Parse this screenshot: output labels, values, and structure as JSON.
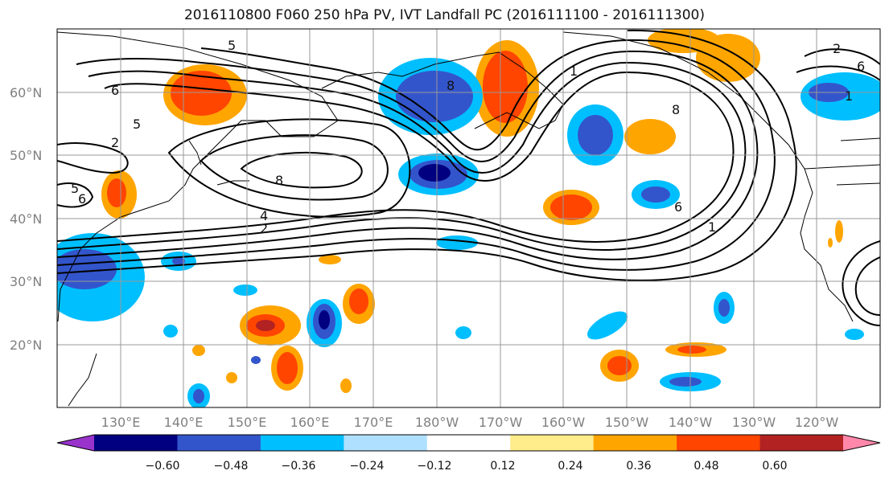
{
  "title": "2016110800 F060 250 hPa PV, IVT Landfall PC (2016111100 - 2016111300)",
  "map": {
    "lat_labels": [
      "60°N",
      "50°N",
      "40°N",
      "30°N",
      "20°N"
    ],
    "lon_labels": [
      "130°E",
      "140°E",
      "150°E",
      "160°E",
      "170°E",
      "180°W",
      "170°W",
      "160°W",
      "150°W",
      "140°W",
      "130°W",
      "120°W"
    ],
    "contour_labels": [
      "5",
      "6",
      "5",
      "2",
      "8",
      "5",
      "6",
      "8",
      "4",
      "2",
      "8",
      "1",
      "6",
      "1",
      "1",
      "6",
      "2"
    ]
  },
  "colorbar": {
    "ticks": [
      "−0.60",
      "−0.48",
      "−0.36",
      "−0.24",
      "−0.12",
      "0.12",
      "0.24",
      "0.36",
      "0.48",
      "0.60"
    ],
    "colors": [
      "#9933cc",
      "#000080",
      "#3355cc",
      "#00bfff",
      "#b0e0ff",
      "#ffffff",
      "#ffec8a",
      "#ffa500",
      "#ff4500",
      "#b22222",
      "#ff88aa"
    ]
  },
  "colors": {
    "land_outline": "#000000",
    "grid": "#999999",
    "contour": "#000000"
  }
}
